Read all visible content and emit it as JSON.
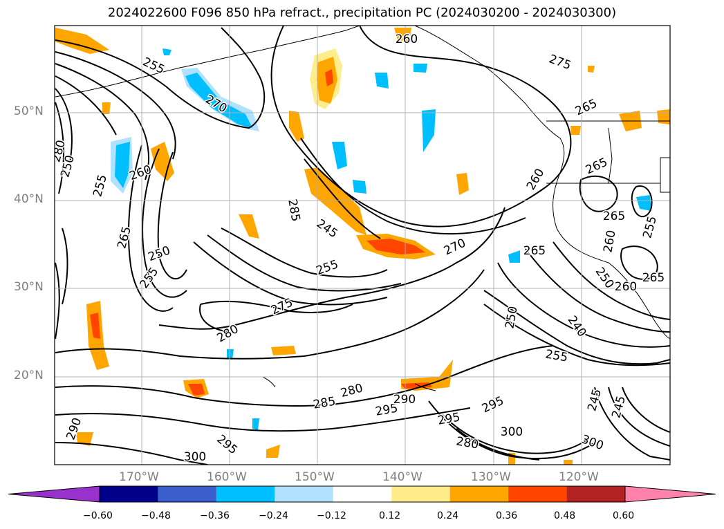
{
  "title": "2024022600 F096 850 hPa refract., precipitation PC (2024030200 - 2024030300)",
  "lat_labels": [
    "50°N",
    "40°N",
    "30°N",
    "20°N"
  ],
  "lon_labels": [
    "170°W",
    "160°W",
    "150°W",
    "140°W",
    "130°W",
    "120°W"
  ],
  "contour_labels": [
    "260",
    "255",
    "270",
    "275",
    "280",
    "260",
    "265",
    "250",
    "255",
    "285",
    "250",
    "255",
    "245",
    "275",
    "280",
    "270",
    "265",
    "265",
    "260",
    "255",
    "265",
    "255",
    "260",
    "250",
    "240",
    "255",
    "260",
    "250",
    "245",
    "245",
    "265",
    "290",
    "285",
    "280",
    "295",
    "290",
    "295",
    "295",
    "280",
    "300",
    "300",
    "295",
    "300",
    "265"
  ],
  "colorbar": {
    "ticks": [
      "−0.60",
      "−0.48",
      "−0.36",
      "−0.24",
      "−0.12",
      "0.12",
      "0.24",
      "0.36",
      "0.48",
      "0.60"
    ],
    "colors": [
      "#9932cc",
      "#00008b",
      "#3a5fcd",
      "#00bfff",
      "#b0e2ff",
      "#ffffff",
      "#ffec8b",
      "#ffa500",
      "#ff4500",
      "#b22222",
      "#ff82ab"
    ]
  }
}
